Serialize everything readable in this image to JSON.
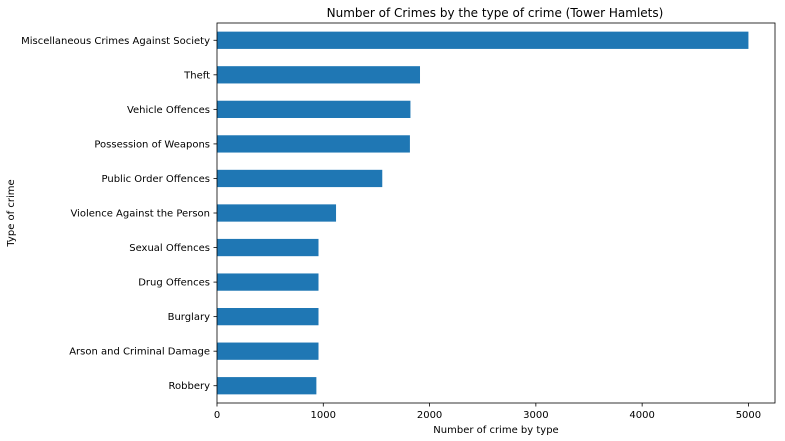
{
  "chart_data": {
    "type": "bar",
    "orientation": "horizontal",
    "title": "Number of Crimes by the type of crime (Tower Hamlets)",
    "xlabel": "Number of crime by type",
    "ylabel": "Type of crime",
    "categories": [
      "Miscellaneous Crimes Against Society",
      "Theft",
      "Vehicle Offences",
      "Possession of Weapons",
      "Public Order Offences",
      "Violence Against the Person",
      "Sexual Offences",
      "Drug Offences",
      "Burglary",
      "Arson and Criminal Damage",
      "Robbery"
    ],
    "values": [
      5000,
      1910,
      1820,
      1815,
      1555,
      1120,
      955,
      955,
      955,
      955,
      935
    ],
    "xlim": [
      0,
      5250
    ],
    "xticks": [
      0,
      1000,
      2000,
      3000,
      4000,
      5000
    ],
    "xtick_labels": [
      "0",
      "1000",
      "2000",
      "3000",
      "4000",
      "5000"
    ],
    "grid": false,
    "bar_color": "#1f77b4"
  }
}
